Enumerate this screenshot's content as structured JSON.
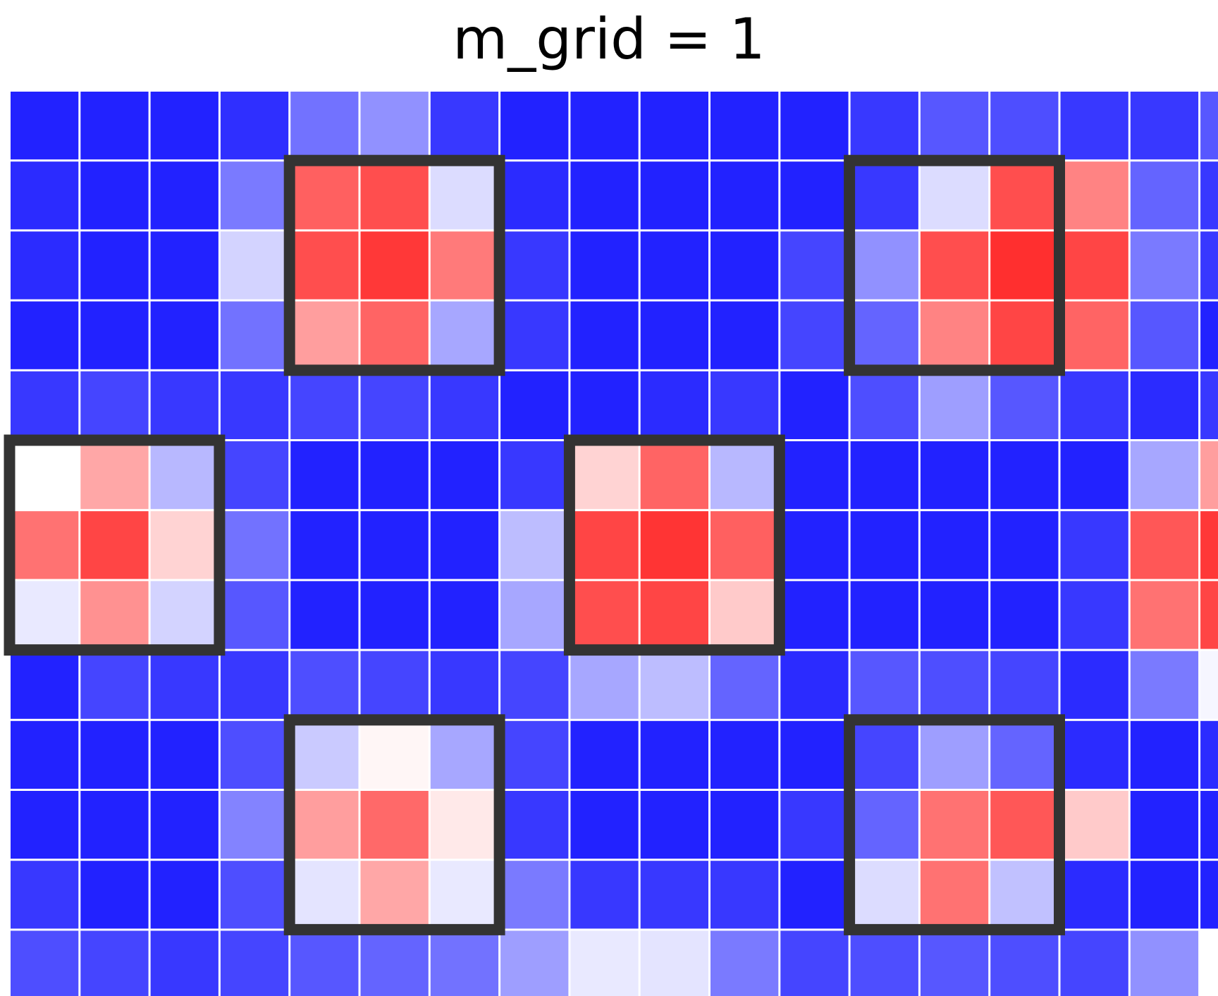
{
  "chart_data": {
    "type": "heatmap",
    "title": "m_grid = 1",
    "rows": 13,
    "cols": 18,
    "color_scale": {
      "low": "#2222ff",
      "mid": "#ffffff",
      "high": "#ff2222"
    },
    "grid": true,
    "values": [
      [
        0.0,
        0.0,
        0.0,
        0.03,
        0.18,
        0.25,
        0.05,
        0.0,
        0.0,
        0.0,
        0.0,
        0.0,
        0.05,
        0.12,
        0.1,
        0.05,
        0.05,
        0.12
      ],
      [
        0.02,
        0.0,
        0.0,
        0.2,
        0.86,
        0.9,
        0.42,
        0.02,
        0.0,
        0.0,
        0.0,
        0.0,
        0.05,
        0.42,
        0.9,
        0.78,
        0.15,
        0.05
      ],
      [
        0.02,
        0.0,
        0.0,
        0.4,
        0.9,
        0.95,
        0.8,
        0.05,
        0.0,
        0.0,
        0.0,
        0.08,
        0.25,
        0.9,
        0.97,
        0.92,
        0.2,
        0.05
      ],
      [
        0.0,
        0.0,
        0.0,
        0.18,
        0.72,
        0.85,
        0.3,
        0.05,
        0.0,
        0.0,
        0.0,
        0.08,
        0.15,
        0.78,
        0.92,
        0.85,
        0.12,
        0.0
      ],
      [
        0.05,
        0.08,
        0.05,
        0.05,
        0.08,
        0.08,
        0.05,
        0.0,
        0.0,
        0.02,
        0.05,
        0.0,
        0.1,
        0.28,
        0.12,
        0.05,
        0.02,
        0.05
      ],
      [
        0.5,
        0.7,
        0.34,
        0.08,
        0.0,
        0.0,
        0.0,
        0.05,
        0.6,
        0.85,
        0.34,
        0.0,
        0.0,
        0.0,
        0.0,
        0.0,
        0.3,
        0.72
      ],
      [
        0.82,
        0.92,
        0.6,
        0.18,
        0.0,
        0.0,
        0.0,
        0.35,
        0.92,
        0.96,
        0.86,
        0.0,
        0.0,
        0.0,
        0.0,
        0.05,
        0.88,
        0.95
      ],
      [
        0.45,
        0.75,
        0.4,
        0.12,
        0.0,
        0.0,
        0.0,
        0.3,
        0.9,
        0.92,
        0.62,
        0.0,
        0.0,
        0.0,
        0.0,
        0.05,
        0.82,
        0.92
      ],
      [
        0.0,
        0.08,
        0.05,
        0.05,
        0.1,
        0.08,
        0.05,
        0.08,
        0.3,
        0.35,
        0.15,
        0.02,
        0.12,
        0.1,
        0.08,
        0.02,
        0.2,
        0.48
      ],
      [
        0.0,
        0.0,
        0.0,
        0.1,
        0.38,
        0.52,
        0.3,
        0.08,
        0.0,
        0.0,
        0.0,
        0.0,
        0.08,
        0.28,
        0.15,
        0.02,
        0.0,
        0.02
      ],
      [
        0.0,
        0.0,
        0.0,
        0.22,
        0.72,
        0.84,
        0.55,
        0.05,
        0.0,
        0.0,
        0.0,
        0.05,
        0.15,
        0.82,
        0.88,
        0.62,
        0.0,
        0.0
      ],
      [
        0.05,
        0.0,
        0.0,
        0.1,
        0.44,
        0.7,
        0.45,
        0.2,
        0.05,
        0.05,
        0.05,
        0.0,
        0.42,
        0.82,
        0.36,
        0.02,
        0.0,
        0.0
      ],
      [
        0.1,
        0.08,
        0.05,
        0.08,
        0.12,
        0.15,
        0.18,
        0.28,
        0.45,
        0.44,
        0.2,
        0.08,
        0.1,
        0.12,
        0.1,
        0.08,
        0.25,
        0.5
      ]
    ],
    "highlight_boxes": [
      {
        "row": 1,
        "col": 4,
        "size": 3
      },
      {
        "row": 1,
        "col": 12,
        "size": 3
      },
      {
        "row": 5,
        "col": 0,
        "size": 3
      },
      {
        "row": 5,
        "col": 8,
        "size": 3
      },
      {
        "row": 9,
        "col": 4,
        "size": 3
      },
      {
        "row": 9,
        "col": 12,
        "size": 3
      }
    ],
    "highlight_color": "#333333"
  }
}
